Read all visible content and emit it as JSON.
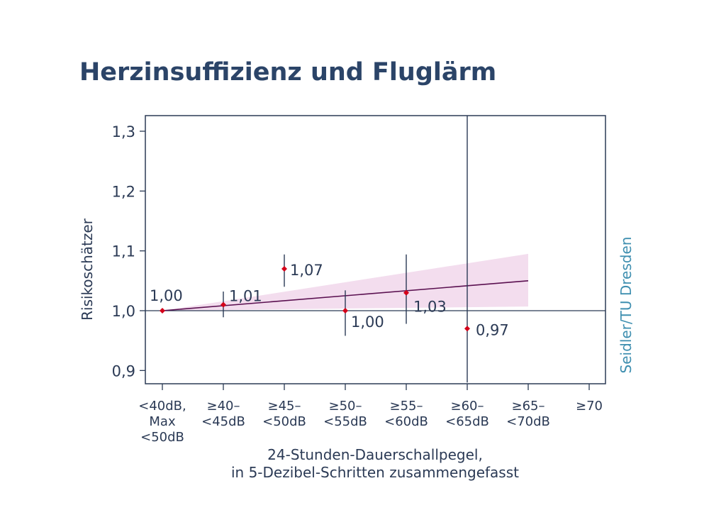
{
  "title": "Herzinsuffizienz und Fluglärm",
  "source": "Seidler/TU Dresden",
  "chart_data": {
    "type": "scatter",
    "ylabel": "Risikoschätzer",
    "xlabel_lines": [
      "24-Stunden-Dauerschallpegel,",
      "in 5-Dezibel-Schritten zusammengefasst"
    ],
    "ylim": [
      0.9,
      1.32
    ],
    "yticks": [
      {
        "value": 0.9,
        "label": "0,9"
      },
      {
        "value": 1.0,
        "label": "1,0"
      },
      {
        "value": 1.1,
        "label": "1,1"
      },
      {
        "value": 1.2,
        "label": "1,2"
      },
      {
        "value": 1.3,
        "label": "1,3"
      }
    ],
    "categories": [
      [
        "<40dB,",
        "Max",
        "<50dB"
      ],
      [
        "≥40–",
        "<45dB"
      ],
      [
        "≥45–",
        "<50dB"
      ],
      [
        "≥50–",
        "<55dB"
      ],
      [
        "≥55–",
        "<60dB"
      ],
      [
        "≥60–",
        "<65dB"
      ],
      [
        "≥65–",
        "<70dB"
      ],
      [
        "≥70"
      ]
    ],
    "points": [
      {
        "category": 0,
        "value": 1.0,
        "label": "1,00",
        "ci": null
      },
      {
        "category": 1,
        "value": 1.01,
        "label": "1,01",
        "ci": [
          0.989,
          1.032
        ]
      },
      {
        "category": 2,
        "value": 1.07,
        "label": "1,07",
        "ci": [
          1.04,
          1.094
        ]
      },
      {
        "category": 3,
        "value": 1.0,
        "label": "1,00",
        "ci": [
          0.958,
          1.034
        ]
      },
      {
        "category": 4,
        "value": 1.03,
        "label": "1,03",
        "ci": [
          0.978,
          1.094
        ]
      },
      {
        "category": 5,
        "value": 0.97,
        "label": "0,97",
        "ci": [
          0.88,
          1.35
        ]
      }
    ],
    "trend": {
      "from": {
        "category": 0,
        "value": 1.0
      },
      "to": {
        "category": 6,
        "value": 1.05
      }
    },
    "trend_band": {
      "from": {
        "category": 0,
        "low": 1.0,
        "high": 1.0
      },
      "to": {
        "category": 6,
        "low": 1.007,
        "high": 1.095
      }
    },
    "reference_value": 1.0,
    "colors": {
      "axis": "#2b3a55",
      "point": "#d4001a",
      "trend": "#5a1050",
      "band": "#f3ddee",
      "source": "#3f8fb0",
      "title": "#2b4468"
    }
  }
}
